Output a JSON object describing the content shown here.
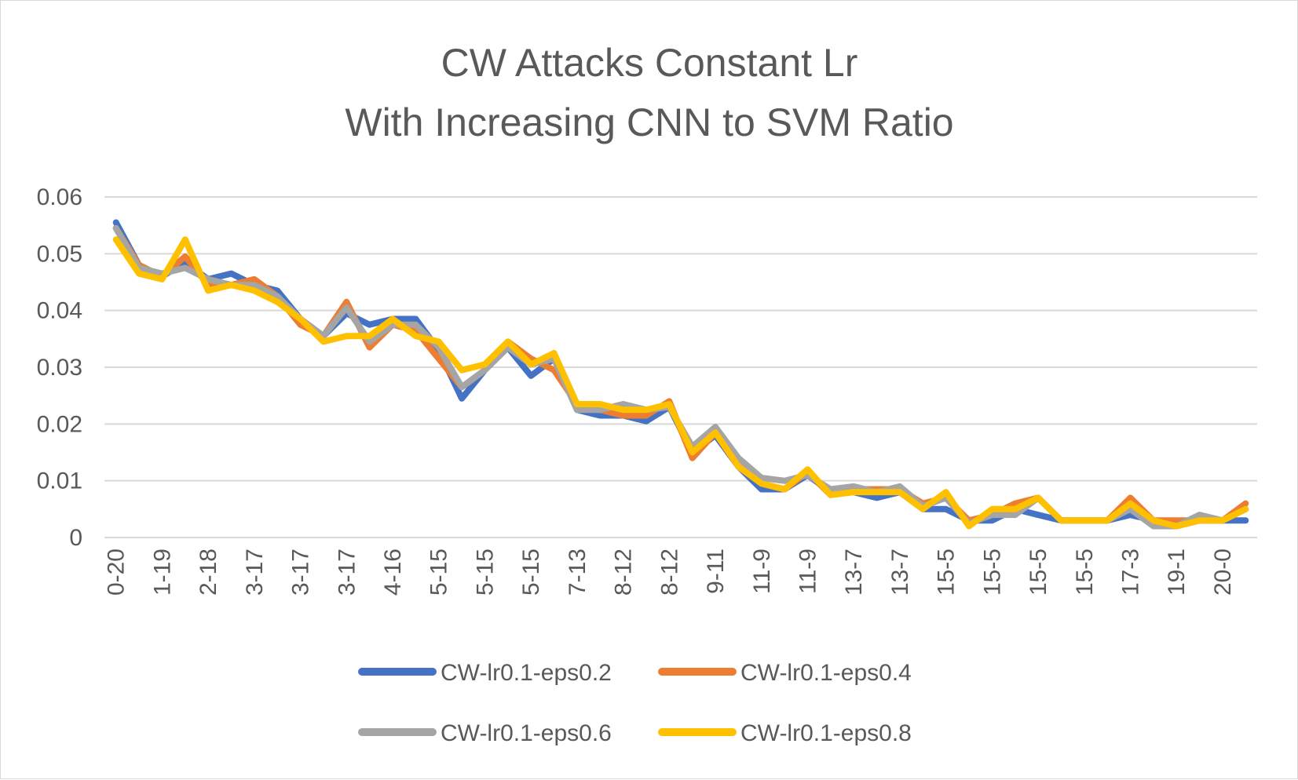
{
  "chart_data": {
    "type": "line",
    "title": [
      "CW Attacks Constant Lr",
      "With Increasing CNN to SVM Ratio"
    ],
    "xlabel": "",
    "ylabel": "",
    "ylim": [
      0,
      0.06
    ],
    "yticks": [
      "0",
      "0.01",
      "0.02",
      "0.03",
      "0.04",
      "0.05",
      "0.06"
    ],
    "ytick_values": [
      0,
      0.01,
      0.02,
      0.03,
      0.04,
      0.05,
      0.06
    ],
    "grid": true,
    "legend_position": "bottom",
    "categories": [
      "0-20",
      "",
      "1-19",
      "",
      "2-18",
      "",
      "3-17",
      "",
      "3-17",
      "",
      "3-17",
      "",
      "4-16",
      "",
      "5-15",
      "",
      "5-15",
      "",
      "5-15",
      "",
      "7-13",
      "",
      "8-12",
      "",
      "8-12",
      "",
      "9-11",
      "",
      "11-9",
      "",
      "11-9",
      "",
      "13-7",
      "",
      "13-7",
      "",
      "15-5",
      "",
      "15-5",
      "",
      "15-5",
      "",
      "15-5",
      "",
      "17-3",
      "",
      "19-1",
      "",
      "20-0",
      ""
    ],
    "series": [
      {
        "name": "CW-lr0.1-eps0.2",
        "color": "#4472c4",
        "values": [
          0.0555,
          0.048,
          0.046,
          0.0485,
          0.0455,
          0.0465,
          0.0445,
          0.0435,
          0.0385,
          0.0355,
          0.0395,
          0.0375,
          0.0385,
          0.0385,
          0.033,
          0.0245,
          0.0295,
          0.0335,
          0.0285,
          0.0315,
          0.0225,
          0.0215,
          0.0215,
          0.0205,
          0.023,
          0.015,
          0.018,
          0.0125,
          0.0085,
          0.0085,
          0.011,
          0.008,
          0.008,
          0.007,
          0.008,
          0.005,
          0.005,
          0.003,
          0.003,
          0.005,
          0.004,
          0.003,
          0.003,
          0.003,
          0.004,
          0.003,
          0.002,
          0.003,
          0.003,
          0.003
        ]
      },
      {
        "name": "CW-lr0.1-eps0.4",
        "color": "#ed7d31",
        "values": [
          0.0545,
          0.048,
          0.046,
          0.0495,
          0.0445,
          0.0445,
          0.0455,
          0.0425,
          0.0375,
          0.0355,
          0.0415,
          0.0335,
          0.0375,
          0.0365,
          0.0315,
          0.0265,
          0.0295,
          0.0345,
          0.0315,
          0.0295,
          0.0235,
          0.0225,
          0.0215,
          0.0215,
          0.024,
          0.014,
          0.0185,
          0.0125,
          0.0095,
          0.0085,
          0.0115,
          0.0075,
          0.0085,
          0.0085,
          0.0085,
          0.006,
          0.007,
          0.003,
          0.004,
          0.006,
          0.007,
          0.003,
          0.003,
          0.003,
          0.007,
          0.003,
          0.003,
          0.003,
          0.003,
          0.006
        ]
      },
      {
        "name": "CW-lr0.1-eps0.6",
        "color": "#a5a5a5",
        "values": [
          0.0545,
          0.0475,
          0.0465,
          0.0475,
          0.0455,
          0.0445,
          0.0445,
          0.0425,
          0.0385,
          0.0355,
          0.0405,
          0.0345,
          0.0375,
          0.0375,
          0.0335,
          0.0265,
          0.0295,
          0.0335,
          0.0305,
          0.0315,
          0.0225,
          0.0225,
          0.0235,
          0.0225,
          0.023,
          0.016,
          0.0195,
          0.014,
          0.0105,
          0.01,
          0.011,
          0.0085,
          0.009,
          0.008,
          0.009,
          0.0055,
          0.007,
          0.0025,
          0.004,
          0.004,
          0.007,
          0.003,
          0.003,
          0.003,
          0.005,
          0.002,
          0.002,
          0.004,
          0.003,
          0.005
        ]
      },
      {
        "name": "CW-lr0.1-eps0.8",
        "color": "#ffc000",
        "values": [
          0.0525,
          0.0465,
          0.0455,
          0.0525,
          0.0435,
          0.0445,
          0.0435,
          0.0415,
          0.0385,
          0.0345,
          0.0355,
          0.0355,
          0.0385,
          0.0355,
          0.0345,
          0.0295,
          0.0305,
          0.0345,
          0.0305,
          0.0325,
          0.0235,
          0.0235,
          0.0225,
          0.0225,
          0.0235,
          0.015,
          0.0185,
          0.0125,
          0.0095,
          0.0085,
          0.012,
          0.0075,
          0.008,
          0.008,
          0.008,
          0.005,
          0.008,
          0.002,
          0.005,
          0.005,
          0.007,
          0.003,
          0.003,
          0.003,
          0.006,
          0.003,
          0.002,
          0.003,
          0.003,
          0.005
        ]
      }
    ]
  }
}
